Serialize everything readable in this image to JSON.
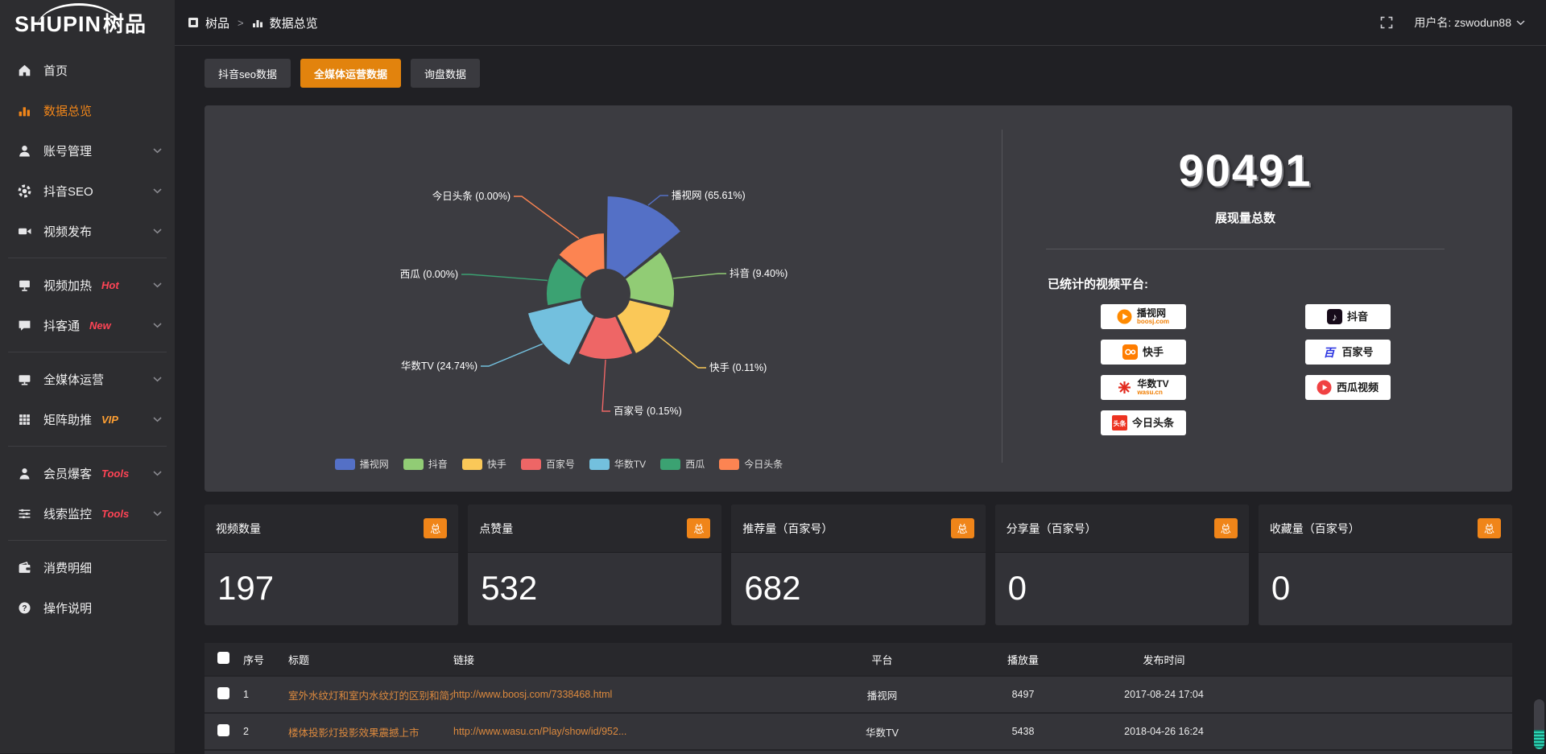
{
  "app": {
    "logo_en": "SHUPIN",
    "logo_cn": "树品"
  },
  "topbar": {
    "breadcrumb_home": "树品",
    "breadcrumb_sep": ">",
    "breadcrumb_current": "数据总览",
    "user_label": "用户名: zswodun88"
  },
  "sidebar": {
    "items": [
      {
        "label": "首页"
      },
      {
        "label": "数据总览"
      },
      {
        "label": "账号管理"
      },
      {
        "label": "抖音SEO"
      },
      {
        "label": "视频发布"
      },
      {
        "label": "视频加热",
        "badge": "Hot"
      },
      {
        "label": "抖客通",
        "badge": "New"
      },
      {
        "label": "全媒体运营"
      },
      {
        "label": "矩阵助推",
        "badge": "VIP"
      },
      {
        "label": "会员爆客",
        "badge": "Tools"
      },
      {
        "label": "线索监控",
        "badge": "Tools"
      },
      {
        "label": "消费明细"
      },
      {
        "label": "操作说明"
      }
    ]
  },
  "tabs": [
    {
      "label": "抖音seo数据"
    },
    {
      "label": "全媒体运营数据"
    },
    {
      "label": "询盘数据"
    }
  ],
  "chart_data": {
    "type": "pie",
    "variant": "nightingale-rose",
    "unit": "%",
    "legend_position": "bottom",
    "items": [
      {
        "name": "播视网",
        "value": 65.61,
        "label": "播视网 (65.61%)",
        "color": "#5470c6"
      },
      {
        "name": "抖音",
        "value": 9.4,
        "label": "抖音 (9.40%)",
        "color": "#91cc75"
      },
      {
        "name": "快手",
        "value": 0.11,
        "label": "快手 (0.11%)",
        "color": "#fac858"
      },
      {
        "name": "百家号",
        "value": 0.15,
        "label": "百家号 (0.15%)",
        "color": "#ee6666"
      },
      {
        "name": "华数TV",
        "value": 24.74,
        "label": "华数TV (24.74%)",
        "color": "#73c0de"
      },
      {
        "name": "西瓜",
        "value": 0.0,
        "label": "西瓜 (0.00%)",
        "color": "#3ba272"
      },
      {
        "name": "今日头条",
        "value": 0.0,
        "label": "今日头条 (0.00%)",
        "color": "#fc8452"
      }
    ]
  },
  "summary": {
    "total": "90491",
    "total_label": "展现量总数",
    "platforms_label": "已统计的视频平台:",
    "platforms_left": [
      {
        "name": "播视网",
        "sub": "boosj.com"
      },
      {
        "name": "快手"
      },
      {
        "name": "华数TV",
        "sub": "wasu.cn"
      },
      {
        "name": "今日头条",
        "logo_text": "头条"
      }
    ],
    "platforms_right": [
      {
        "name": "抖音"
      },
      {
        "name": "百家号",
        "logo_text": "百"
      },
      {
        "name": "西瓜视频"
      }
    ]
  },
  "stat_cards": [
    {
      "title": "视频数量",
      "badge": "总",
      "value": "197"
    },
    {
      "title": "点赞量",
      "badge": "总",
      "value": "532"
    },
    {
      "title": "推荐量（百家号）",
      "badge": "总",
      "value": "682"
    },
    {
      "title": "分享量（百家号）",
      "badge": "总",
      "value": "0"
    },
    {
      "title": "收藏量（百家号）",
      "badge": "总",
      "value": "0"
    }
  ],
  "table": {
    "headers": [
      "序号",
      "标题",
      "链接",
      "平台",
      "播放量",
      "发布时间"
    ],
    "rows": [
      {
        "index": "1",
        "title": "室外水纹灯和室内水纹灯的区别和简介",
        "link": "http://www.boosj.com/7338468.html",
        "platform": "播视网",
        "views": "8497",
        "time": "2017-08-24 17:04"
      },
      {
        "index": "2",
        "title": "楼体投影灯投影效果震撼上市",
        "link": "http://www.wasu.cn/Play/show/id/952...",
        "platform": "华数TV",
        "views": "5438",
        "time": "2018-04-26 16:24"
      }
    ]
  },
  "colors": {
    "accent": "#e8830f",
    "badge": "#f08519",
    "link_text": "#dd8a3e"
  }
}
